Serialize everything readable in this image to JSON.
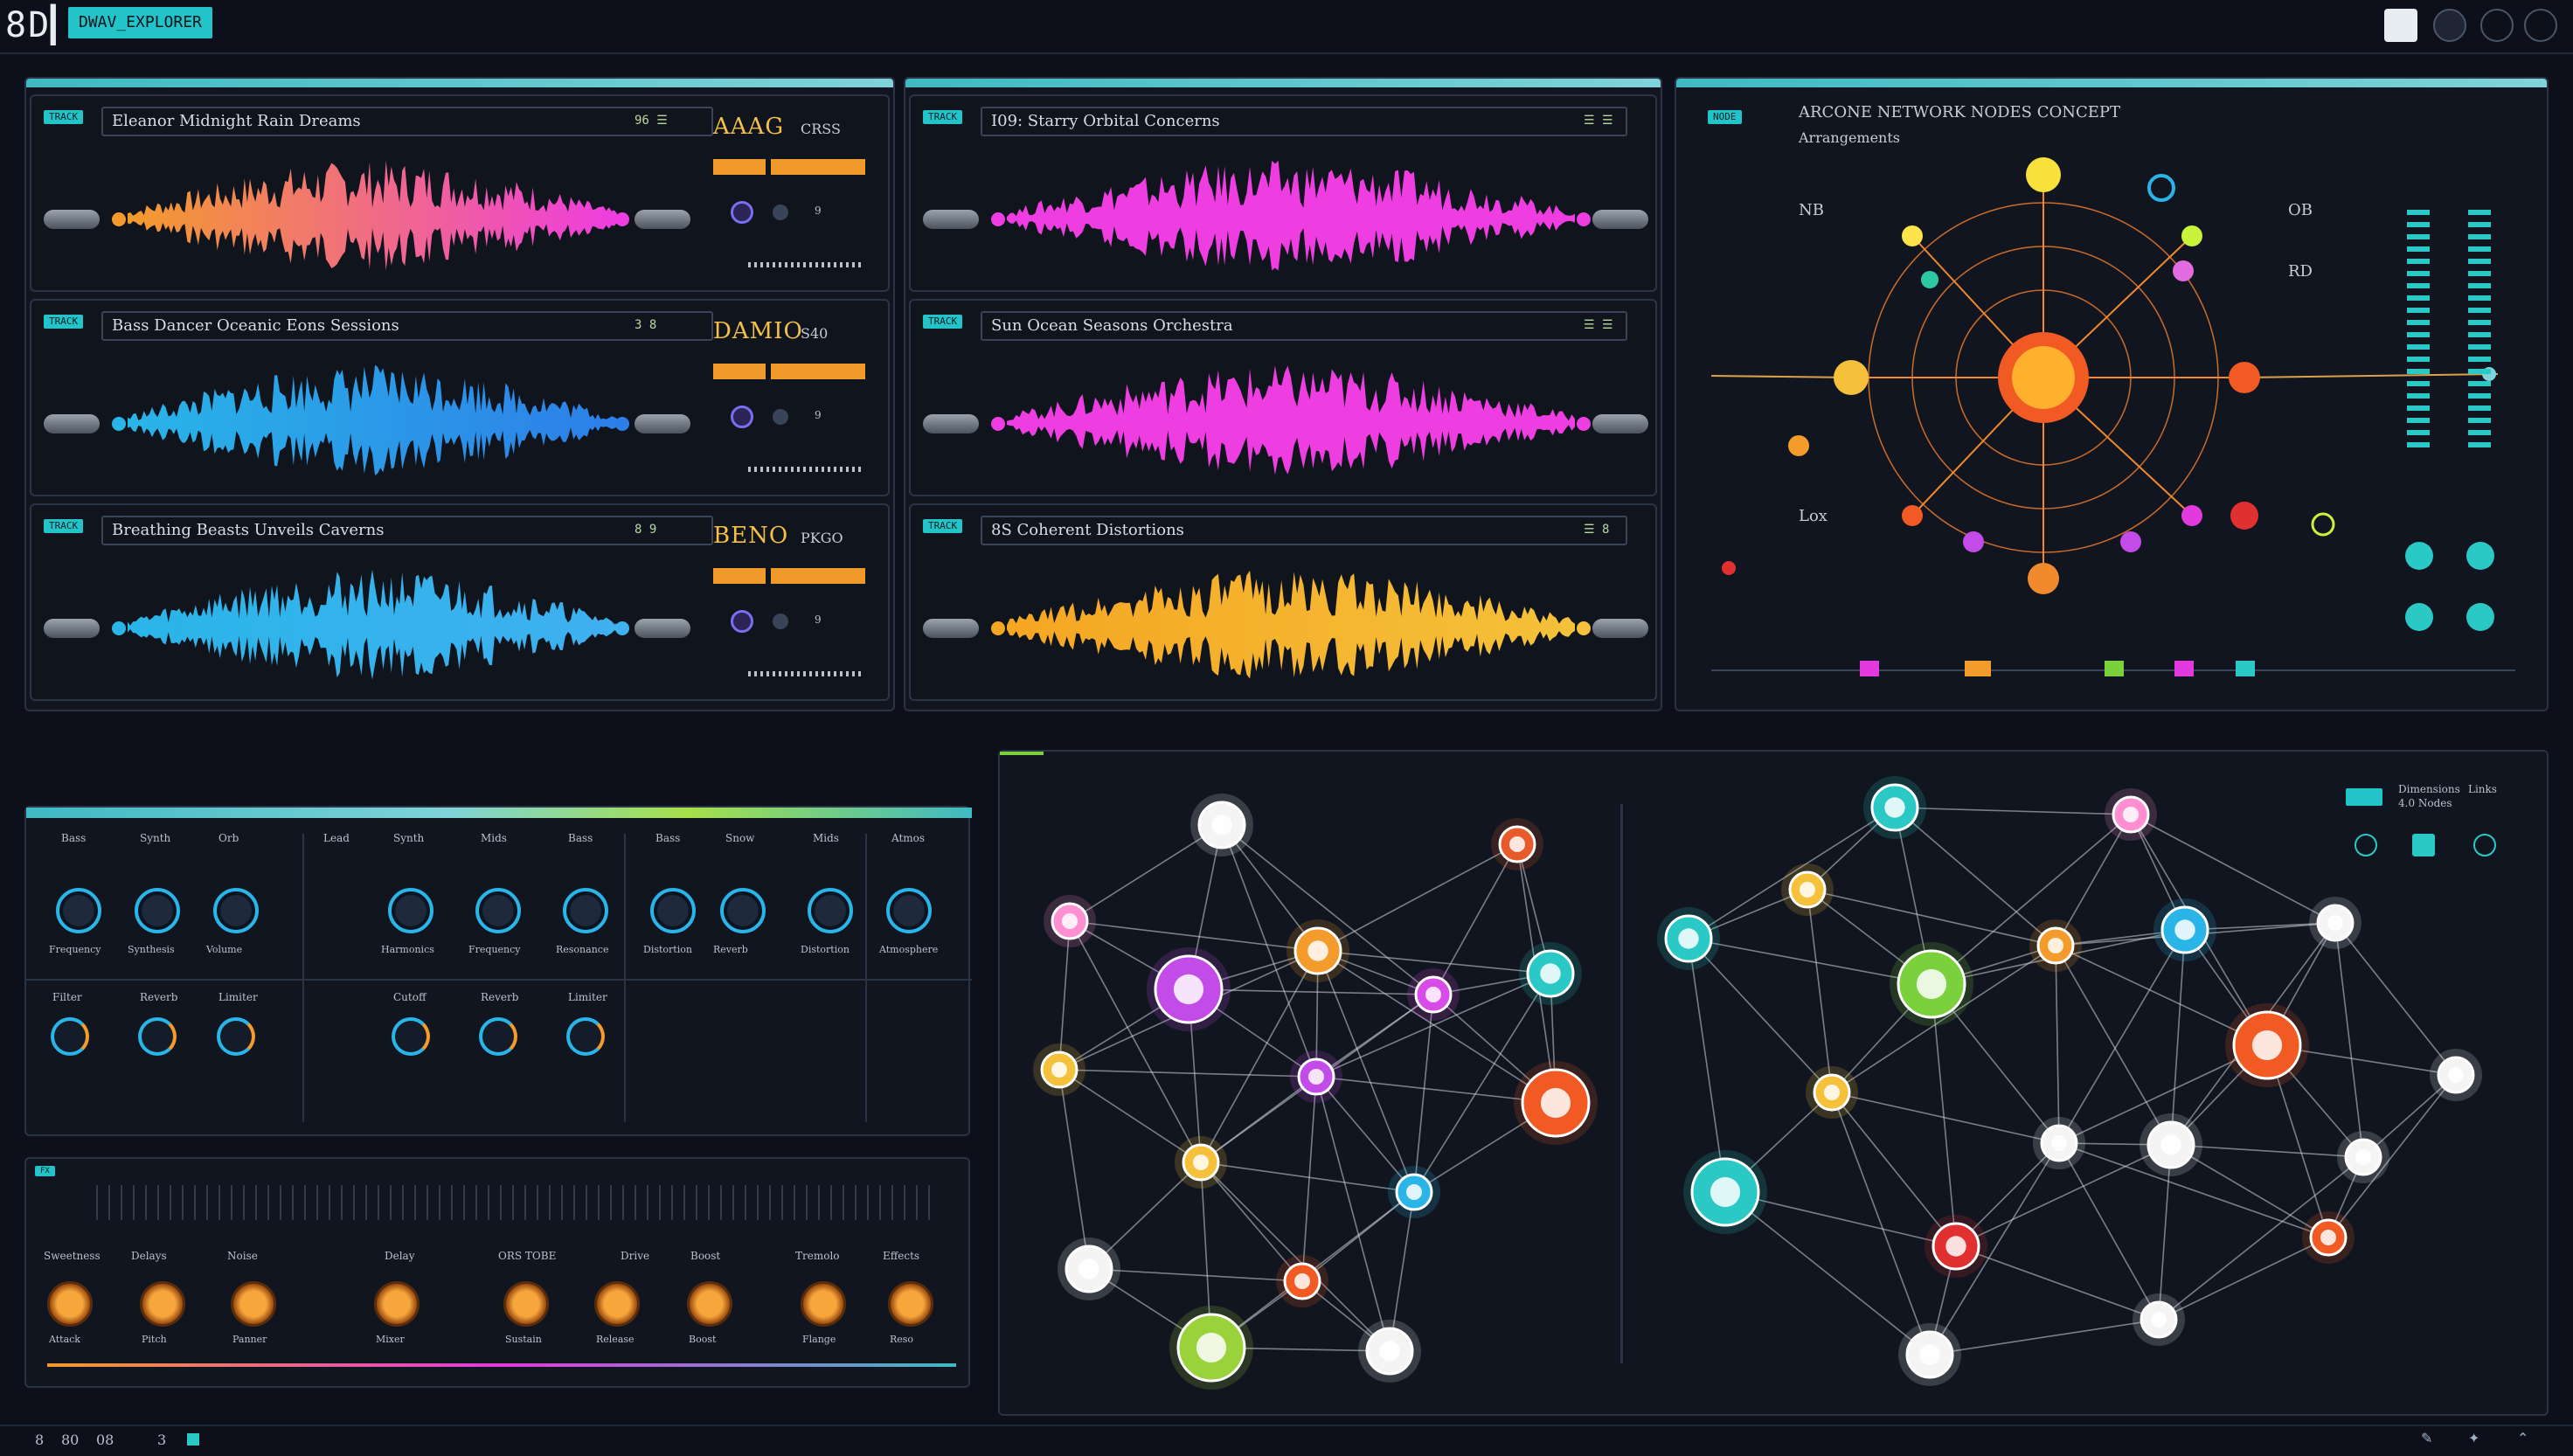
{
  "app": {
    "logo": "8D▎",
    "badge": "DWAV_EXPLORER"
  },
  "topbar_icons": [
    "screen-icon",
    "record-icon",
    "settings-icon",
    "power-icon"
  ],
  "tracks": [
    {
      "tag": "TRACK",
      "title": "Eleanor Midnight Rain Dreams",
      "meter": "96 ☰",
      "big": "AAAG",
      "small": "CRSS",
      "color1": "#f39b2b",
      "color2": "#ee3de0"
    },
    {
      "tag": "TRACK",
      "title": "I09: Starry Orbital Concerns",
      "meter": "☰ ☰",
      "color1": "#ee3de0",
      "color2": "#ee3de0"
    },
    {
      "tag": "TRACK",
      "title": "Bass Dancer Oceanic Eons Sessions",
      "meter": "3 8",
      "big": "DAMIO",
      "small": "S40",
      "color1": "#2ab5e8",
      "color2": "#2c7fe8"
    },
    {
      "tag": "TRACK",
      "title": "Sun Ocean Seasons Orchestra",
      "meter": "☰ ☰",
      "color1": "#ee3de0",
      "color2": "#ee3de0"
    },
    {
      "tag": "TRACK",
      "title": "Breathing Beasts Unveils Caverns",
      "meter": "8 9",
      "big": "BENO",
      "small": "PKGO",
      "color1": "#2ab5e8",
      "color2": "#3fb0f0"
    },
    {
      "tag": "TRACK",
      "title": "8S Coherent Distortions",
      "meter": "☰ 8",
      "color1": "#f5a623",
      "color2": "#f5c13a"
    }
  ],
  "orbital": {
    "title": "ARCONE NETWORK NODES CONCEPT",
    "subtitle": "Arrangements",
    "labels": [
      "NB",
      "Lox",
      "RD",
      "OB"
    ]
  },
  "mixer": {
    "headers": [
      "Bass",
      "Synth",
      "Orb",
      "Lead",
      "Synth",
      "Mids",
      "Bass",
      "Bass",
      "Snow",
      "Mids",
      "Atmos"
    ],
    "knob_labels": [
      "Frequency",
      "Synthesis",
      "Volume",
      "Harmonics",
      "Frequency",
      "Resonance",
      "Distortion",
      "Reverb",
      "Distortion",
      "Atmosphere"
    ],
    "row2_headers": [
      "Filter",
      "Reverb",
      "Limiter",
      "Cutoff",
      "Reverb",
      "Limiter"
    ]
  },
  "fx": {
    "labels": [
      "Sweetness",
      "Delays",
      "Noise",
      "Delay",
      "ORS TOBE",
      "Drive",
      "Boost",
      "Tremolo",
      "Effects"
    ],
    "knob_labels": [
      "Attack",
      "Pitch",
      "Panner",
      "Mixer",
      "Sustain",
      "Release",
      "Boost",
      "Flange",
      "Reso"
    ]
  },
  "network": {
    "top_right": [
      "Dimensions",
      "4.0 Nodes",
      "Links"
    ]
  },
  "statusbar": [
    "8",
    "80",
    "08",
    "3"
  ],
  "colors": {
    "accent": "#22c3c9",
    "orange": "#f39b2b",
    "magenta": "#ee3de0",
    "blue": "#2ab5e8"
  }
}
